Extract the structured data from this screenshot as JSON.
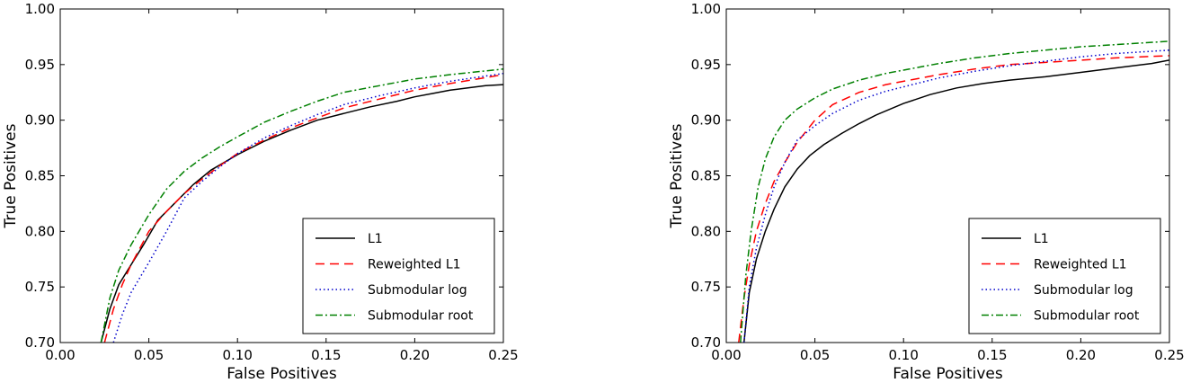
{
  "chart_data": [
    {
      "type": "line",
      "title": "",
      "xlabel": "False Positives",
      "ylabel": "True Positives",
      "xlim": [
        0.0,
        0.25
      ],
      "ylim": [
        0.7,
        1.0
      ],
      "xticks": [
        "0.00",
        "0.05",
        "0.10",
        "0.15",
        "0.20",
        "0.25"
      ],
      "yticks": [
        "0.70",
        "0.75",
        "0.80",
        "0.85",
        "0.90",
        "0.95",
        "1.00"
      ],
      "grid": false,
      "legend_position": "bottom-right",
      "series": [
        {
          "name": "L1",
          "color": "#000000",
          "style": "solid",
          "x": [
            0.023,
            0.028,
            0.033,
            0.04,
            0.047,
            0.055,
            0.065,
            0.075,
            0.085,
            0.1,
            0.115,
            0.13,
            0.145,
            0.16,
            0.175,
            0.19,
            0.2,
            0.21,
            0.22,
            0.23,
            0.24,
            0.25
          ],
          "y": [
            0.7,
            0.73,
            0.752,
            0.77,
            0.788,
            0.81,
            0.826,
            0.842,
            0.855,
            0.869,
            0.881,
            0.891,
            0.9,
            0.906,
            0.912,
            0.917,
            0.921,
            0.924,
            0.927,
            0.929,
            0.931,
            0.932
          ]
        },
        {
          "name": "Reweighted L1",
          "color": "#ff0000",
          "style": "dashed",
          "x": [
            0.025,
            0.03,
            0.035,
            0.04,
            0.05,
            0.06,
            0.07,
            0.08,
            0.09,
            0.1,
            0.115,
            0.13,
            0.145,
            0.16,
            0.18,
            0.2,
            0.22,
            0.25
          ],
          "y": [
            0.7,
            0.73,
            0.752,
            0.77,
            0.8,
            0.818,
            0.834,
            0.847,
            0.859,
            0.87,
            0.882,
            0.893,
            0.902,
            0.911,
            0.919,
            0.927,
            0.933,
            0.941
          ]
        },
        {
          "name": "Submodular log",
          "color": "#0000cc",
          "style": "dotted",
          "x": [
            0.03,
            0.035,
            0.04,
            0.05,
            0.06,
            0.07,
            0.08,
            0.09,
            0.1,
            0.115,
            0.13,
            0.145,
            0.16,
            0.18,
            0.2,
            0.22,
            0.25
          ],
          "y": [
            0.7,
            0.725,
            0.745,
            0.772,
            0.8,
            0.83,
            0.845,
            0.858,
            0.87,
            0.884,
            0.895,
            0.905,
            0.914,
            0.922,
            0.929,
            0.935,
            0.942
          ]
        },
        {
          "name": "Submodular root",
          "color": "#008000",
          "style": "dashdot",
          "x": [
            0.023,
            0.028,
            0.033,
            0.04,
            0.05,
            0.06,
            0.07,
            0.08,
            0.09,
            0.1,
            0.115,
            0.13,
            0.145,
            0.16,
            0.18,
            0.2,
            0.22,
            0.25
          ],
          "y": [
            0.7,
            0.74,
            0.765,
            0.788,
            0.815,
            0.838,
            0.854,
            0.866,
            0.876,
            0.885,
            0.898,
            0.908,
            0.917,
            0.925,
            0.931,
            0.937,
            0.941,
            0.946
          ]
        }
      ]
    },
    {
      "type": "line",
      "title": "",
      "xlabel": "False Positives",
      "ylabel": "True Positives",
      "xlim": [
        0.0,
        0.25
      ],
      "ylim": [
        0.7,
        1.0
      ],
      "xticks": [
        "0.00",
        "0.05",
        "0.10",
        "0.15",
        "0.20",
        "0.25"
      ],
      "yticks": [
        "0.70",
        "0.75",
        "0.80",
        "0.85",
        "0.90",
        "0.95",
        "1.00"
      ],
      "grid": false,
      "legend_position": "bottom-right",
      "series": [
        {
          "name": "L1",
          "color": "#000000",
          "style": "solid",
          "x": [
            0.01,
            0.013,
            0.017,
            0.022,
            0.027,
            0.033,
            0.04,
            0.047,
            0.055,
            0.065,
            0.075,
            0.085,
            0.1,
            0.115,
            0.13,
            0.145,
            0.16,
            0.18,
            0.2,
            0.22,
            0.24,
            0.25
          ],
          "y": [
            0.7,
            0.745,
            0.775,
            0.8,
            0.82,
            0.84,
            0.856,
            0.868,
            0.878,
            0.888,
            0.897,
            0.905,
            0.915,
            0.923,
            0.929,
            0.933,
            0.936,
            0.939,
            0.943,
            0.947,
            0.951,
            0.954
          ]
        },
        {
          "name": "Reweighted L1",
          "color": "#ff0000",
          "style": "dashed",
          "x": [
            0.007,
            0.01,
            0.013,
            0.017,
            0.022,
            0.027,
            0.033,
            0.04,
            0.05,
            0.06,
            0.075,
            0.09,
            0.1,
            0.12,
            0.14,
            0.16,
            0.18,
            0.2,
            0.22,
            0.25
          ],
          "y": [
            0.7,
            0.74,
            0.77,
            0.8,
            0.825,
            0.845,
            0.862,
            0.88,
            0.9,
            0.914,
            0.925,
            0.932,
            0.935,
            0.941,
            0.946,
            0.95,
            0.952,
            0.954,
            0.956,
            0.958
          ]
        },
        {
          "name": "Submodular log",
          "color": "#0000cc",
          "style": "dotted",
          "x": [
            0.01,
            0.013,
            0.017,
            0.022,
            0.027,
            0.033,
            0.04,
            0.05,
            0.06,
            0.075,
            0.09,
            0.1,
            0.12,
            0.14,
            0.16,
            0.18,
            0.2,
            0.22,
            0.25
          ],
          "y": [
            0.7,
            0.75,
            0.785,
            0.815,
            0.84,
            0.862,
            0.882,
            0.895,
            0.906,
            0.918,
            0.926,
            0.93,
            0.938,
            0.944,
            0.949,
            0.953,
            0.957,
            0.96,
            0.963
          ]
        },
        {
          "name": "Submodular root",
          "color": "#008000",
          "style": "dashdot",
          "x": [
            0.008,
            0.011,
            0.014,
            0.018,
            0.022,
            0.027,
            0.033,
            0.04,
            0.05,
            0.06,
            0.075,
            0.09,
            0.1,
            0.12,
            0.14,
            0.16,
            0.18,
            0.2,
            0.22,
            0.25
          ],
          "y": [
            0.7,
            0.76,
            0.8,
            0.84,
            0.865,
            0.885,
            0.9,
            0.91,
            0.92,
            0.928,
            0.936,
            0.942,
            0.945,
            0.951,
            0.956,
            0.96,
            0.963,
            0.966,
            0.968,
            0.971
          ]
        }
      ]
    }
  ]
}
